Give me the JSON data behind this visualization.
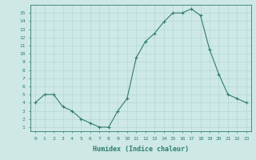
{
  "x": [
    0,
    1,
    2,
    3,
    4,
    5,
    6,
    7,
    8,
    9,
    10,
    11,
    12,
    13,
    14,
    15,
    16,
    17,
    18,
    19,
    20,
    21,
    22,
    23
  ],
  "y": [
    4,
    5,
    5,
    3.5,
    3,
    2,
    1.5,
    1,
    1,
    3,
    4.5,
    9.5,
    11.5,
    12.5,
    13.9,
    15,
    15,
    15.5,
    14.7,
    10.5,
    7.5,
    5,
    4.5,
    4
  ],
  "line_color": "#2e7d6e",
  "marker_color": "#2e7d6e",
  "bg_color": "#cde8e5",
  "grid_color": "#aed4d0",
  "xlabel": "Humidex (Indice chaleur)",
  "xlim": [
    -0.5,
    23.5
  ],
  "ylim": [
    0.5,
    16
  ],
  "yticks": [
    1,
    2,
    3,
    4,
    5,
    6,
    7,
    8,
    9,
    10,
    11,
    12,
    13,
    14,
    15
  ],
  "xticks": [
    0,
    1,
    2,
    3,
    4,
    5,
    6,
    7,
    8,
    9,
    10,
    11,
    12,
    13,
    14,
    15,
    16,
    17,
    18,
    19,
    20,
    21,
    22,
    23
  ]
}
